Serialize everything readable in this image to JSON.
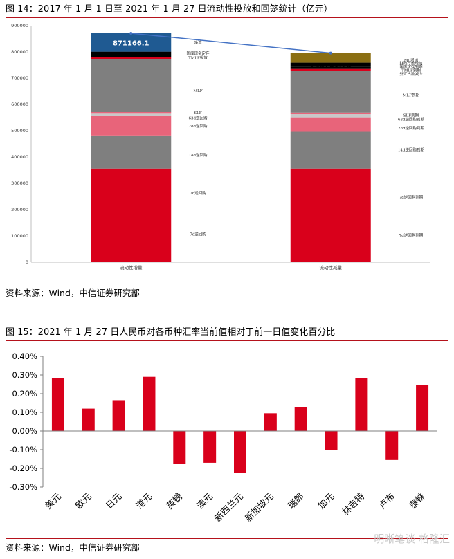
{
  "figure14": {
    "title": "图 14：2017 年 1 月 1 日至 2021 年 1 月 27 日流动性投放和回笼统计（亿元）",
    "source": "资料来源：Wind，中信证券研究部",
    "colors": {
      "red": "#d9001b",
      "gray": "#7f7f7f",
      "pink": "#e8647a",
      "lightgray": "#c8c8c8",
      "black": "#000000",
      "blue": "#1f5a92",
      "olive": "#8b6f13",
      "line": "#4472c4"
    },
    "chart_data": {
      "type": "bar",
      "stacked": true,
      "ylim": [
        0,
        900000
      ],
      "yticks": [
        0,
        100000,
        200000,
        300000,
        400000,
        500000,
        600000,
        700000,
        800000,
        900000
      ],
      "ytick_labels": [
        "0",
        "100000",
        "200000",
        "300000",
        "400000",
        "500000",
        "600000",
        "700000",
        "800000",
        "900000"
      ],
      "categories": [
        "流动性增量",
        "流动性减量"
      ],
      "bars": [
        {
          "category": "流动性增量",
          "total_label": "871166.1",
          "total": 871166.1,
          "segments": [
            {
              "label": "7d逆回购",
              "value": 356000,
              "color": "red"
            },
            {
              "label": "14d逆回购",
              "value": 126000,
              "color": "gray"
            },
            {
              "label": "28d逆回购",
              "value": 75000,
              "color": "pink"
            },
            {
              "label": "63d逆回购",
              "value": 8000,
              "color": "lightgray"
            },
            {
              "label": "SLF",
              "value": 6000,
              "color": "pink"
            },
            {
              "label": "MLF",
              "value": 200000,
              "color": "gray"
            },
            {
              "label": "TMLF投放",
              "value": 8000,
              "color": "red"
            },
            {
              "label": "国库现金定存",
              "value": 22000,
              "color": "black"
            },
            {
              "label": "净流",
              "value": 70166.1,
              "color": "blue"
            }
          ]
        },
        {
          "category": "流动性减量",
          "total_label": "795701.78",
          "total": 795701.78,
          "segments": [
            {
              "label": "7d逆回购到期",
              "value": 356000,
              "color": "red"
            },
            {
              "label": "14d逆回购到期",
              "value": 140000,
              "color": "gray"
            },
            {
              "label": "28d逆回购到期",
              "value": 55000,
              "color": "pink"
            },
            {
              "label": "63d逆回购到期",
              "value": 12000,
              "color": "lightgray"
            },
            {
              "label": "SLF到期",
              "value": 6000,
              "color": "pink"
            },
            {
              "label": "MLF到期",
              "value": 158000,
              "color": "gray"
            },
            {
              "label": "外汇占款减少",
              "value": 8000,
              "color": "red"
            },
            {
              "label": "TMLF到期",
              "value": 8000,
              "color": "black"
            },
            {
              "label": "国库定存到期",
              "value": 16000,
              "color": "black"
            },
            {
              "label": "财政存款增加",
              "value": 14000,
              "color": "olive"
            },
            {
              "label": "M0增加",
              "value": 22701.78,
              "color": "olive"
            }
          ]
        }
      ],
      "left_labels": [
        {
          "text": "净流",
          "y": 835000
        },
        {
          "text": "国库现金定存",
          "y": 795000
        },
        {
          "text": "TMLF投放",
          "y": 778000
        },
        {
          "text": "MLF",
          "y": 653000
        },
        {
          "text": "SLF",
          "y": 568000
        },
        {
          "text": "63d逆回购",
          "y": 549000
        },
        {
          "text": "28d逆回购",
          "y": 519000
        },
        {
          "text": "14d逆回购",
          "y": 408000
        },
        {
          "text": "7d逆回购",
          "y": 263000
        },
        {
          "text": "7d逆回购",
          "y": 106000
        }
      ],
      "right_labels": [
        {
          "text": "M0增加",
          "y": 769000
        },
        {
          "text": "财政存款增加",
          "y": 756000
        },
        {
          "text": "国库定存到期",
          "y": 743000
        },
        {
          "text": "TMLF到期",
          "y": 730000
        },
        {
          "text": "外汇占款减少",
          "y": 716000
        },
        {
          "text": "MLF到期",
          "y": 636000
        },
        {
          "text": "SLF到期",
          "y": 559000
        },
        {
          "text": "63d逆回购到期",
          "y": 543000
        },
        {
          "text": "28d逆回购到期",
          "y": 510000
        },
        {
          "text": "14d逆回购到期",
          "y": 428000
        },
        {
          "text": "7d逆回购到期",
          "y": 247000
        },
        {
          "text": "7d逆回购到期",
          "y": 103000
        }
      ]
    }
  },
  "figure15": {
    "title": "图 15：2021 年 1 月 27 日人民币对各币种汇率当前值相对于前一日值变化百分比",
    "source": "资料来源：Wind，中信证券研究部",
    "bar_color": "#d9001b",
    "chart_data": {
      "type": "bar",
      "categories": [
        "美元",
        "欧元",
        "日元",
        "港元",
        "英镑",
        "澳元",
        "新西兰元",
        "新加坡元",
        "瑞郎",
        "加元",
        "林吉特",
        "卢布",
        "泰铢"
      ],
      "values": [
        0.283,
        0.12,
        0.165,
        0.29,
        -0.175,
        -0.17,
        -0.225,
        0.095,
        0.128,
        -0.103,
        0.283,
        -0.155,
        0.245
      ],
      "ylim": [
        -0.3,
        0.4
      ],
      "yticks": [
        -0.3,
        -0.2,
        -0.1,
        0,
        0.1,
        0.2,
        0.3,
        0.4
      ],
      "ytick_labels": [
        "-0.30%",
        "-0.20%",
        "-0.10%",
        "0.00%",
        "0.10%",
        "0.20%",
        "0.30%",
        "0.40%"
      ]
    }
  },
  "watermark": "明晰笔谈 格隆汇"
}
